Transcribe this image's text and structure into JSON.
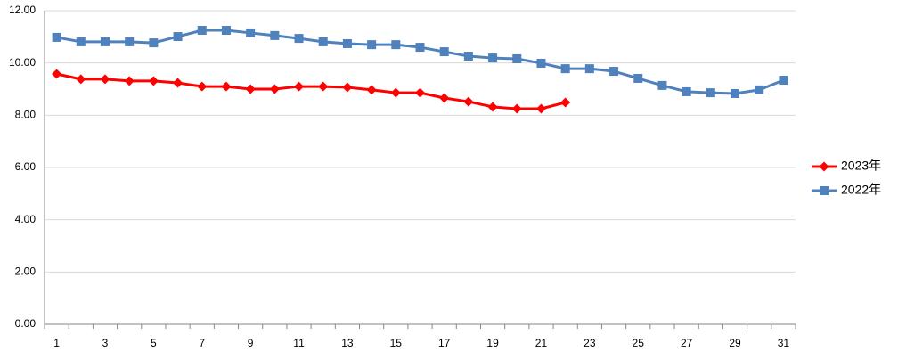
{
  "chart_data": {
    "type": "line",
    "categories": [
      "1",
      null,
      "3",
      null,
      "5",
      null,
      "7",
      null,
      "9",
      null,
      "11",
      null,
      "13",
      null,
      "15",
      null,
      "17",
      null,
      "19",
      null,
      "21",
      null,
      "23",
      null,
      "25",
      null,
      "27",
      null,
      "29",
      null,
      "31"
    ],
    "series": [
      {
        "name": "2023年",
        "color": "#ff0000",
        "marker": "diamond",
        "values": [
          9.58,
          9.38,
          9.38,
          9.31,
          9.31,
          9.24,
          9.1,
          9.1,
          9.0,
          9.0,
          9.1,
          9.1,
          9.07,
          8.97,
          8.86,
          8.86,
          8.66,
          8.52,
          8.32,
          8.25,
          8.25,
          8.49,
          null,
          null,
          null,
          null,
          null,
          null,
          null,
          null,
          null
        ]
      },
      {
        "name": "2022年",
        "color": "#4f81bd",
        "marker": "square",
        "values": [
          10.98,
          10.81,
          10.81,
          10.81,
          10.77,
          11.01,
          11.25,
          11.25,
          11.15,
          11.05,
          10.94,
          10.81,
          10.74,
          10.7,
          10.7,
          10.6,
          10.43,
          10.26,
          10.19,
          10.16,
          9.99,
          9.78,
          9.78,
          9.68,
          9.41,
          9.14,
          8.9,
          8.86,
          8.83,
          8.97,
          9.34
        ]
      }
    ],
    "ylim": [
      0,
      12
    ],
    "yticks": [
      {
        "value": 0,
        "label": "0.00"
      },
      {
        "value": 2,
        "label": "2.00"
      },
      {
        "value": 4,
        "label": "4.00"
      },
      {
        "value": 6,
        "label": "6.00"
      },
      {
        "value": 8,
        "label": "8.00"
      },
      {
        "value": 10,
        "label": "10.00"
      },
      {
        "value": 12,
        "label": "12.00"
      }
    ],
    "grid": true,
    "legend": "right"
  }
}
